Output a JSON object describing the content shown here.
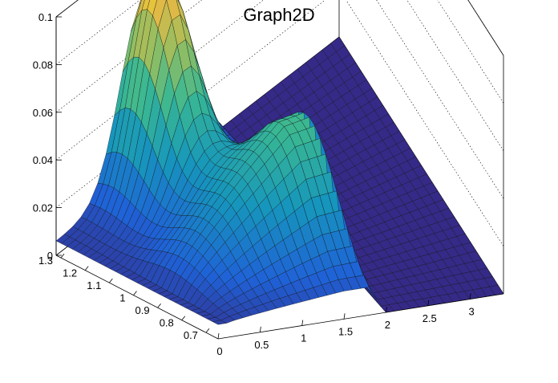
{
  "chart_data": {
    "type": "surface3d",
    "title": "Graph2D",
    "xlabel": "",
    "ylabel": "",
    "zlabel": "",
    "xlim": [
      0,
      3.4
    ],
    "ylim": [
      0.65,
      1.32
    ],
    "zlim": [
      0,
      0.1
    ],
    "x_ticks": [
      "0",
      "0.5",
      "1",
      "1.5",
      "2",
      "2.5",
      "3"
    ],
    "y_ticks": [
      "0.7",
      "0.8",
      "0.9",
      "1",
      "1.1",
      "1.2",
      "1.3"
    ],
    "z_ticks": [
      "0",
      "0.02",
      "0.04",
      "0.06",
      "0.08",
      "0.1"
    ],
    "colormap": "viridis-like (blue to yellow)",
    "grid": true,
    "surface_features": {
      "background_level": 0.006,
      "main_peak": {
        "x": 1.05,
        "y": 1.25,
        "z": 0.1
      },
      "ridge": {
        "y": 0.9,
        "x_range": [
          0.4,
          1.8
        ],
        "peak_z": 0.05
      },
      "zero_region_x": [
        1.9,
        3.4
      ]
    }
  }
}
